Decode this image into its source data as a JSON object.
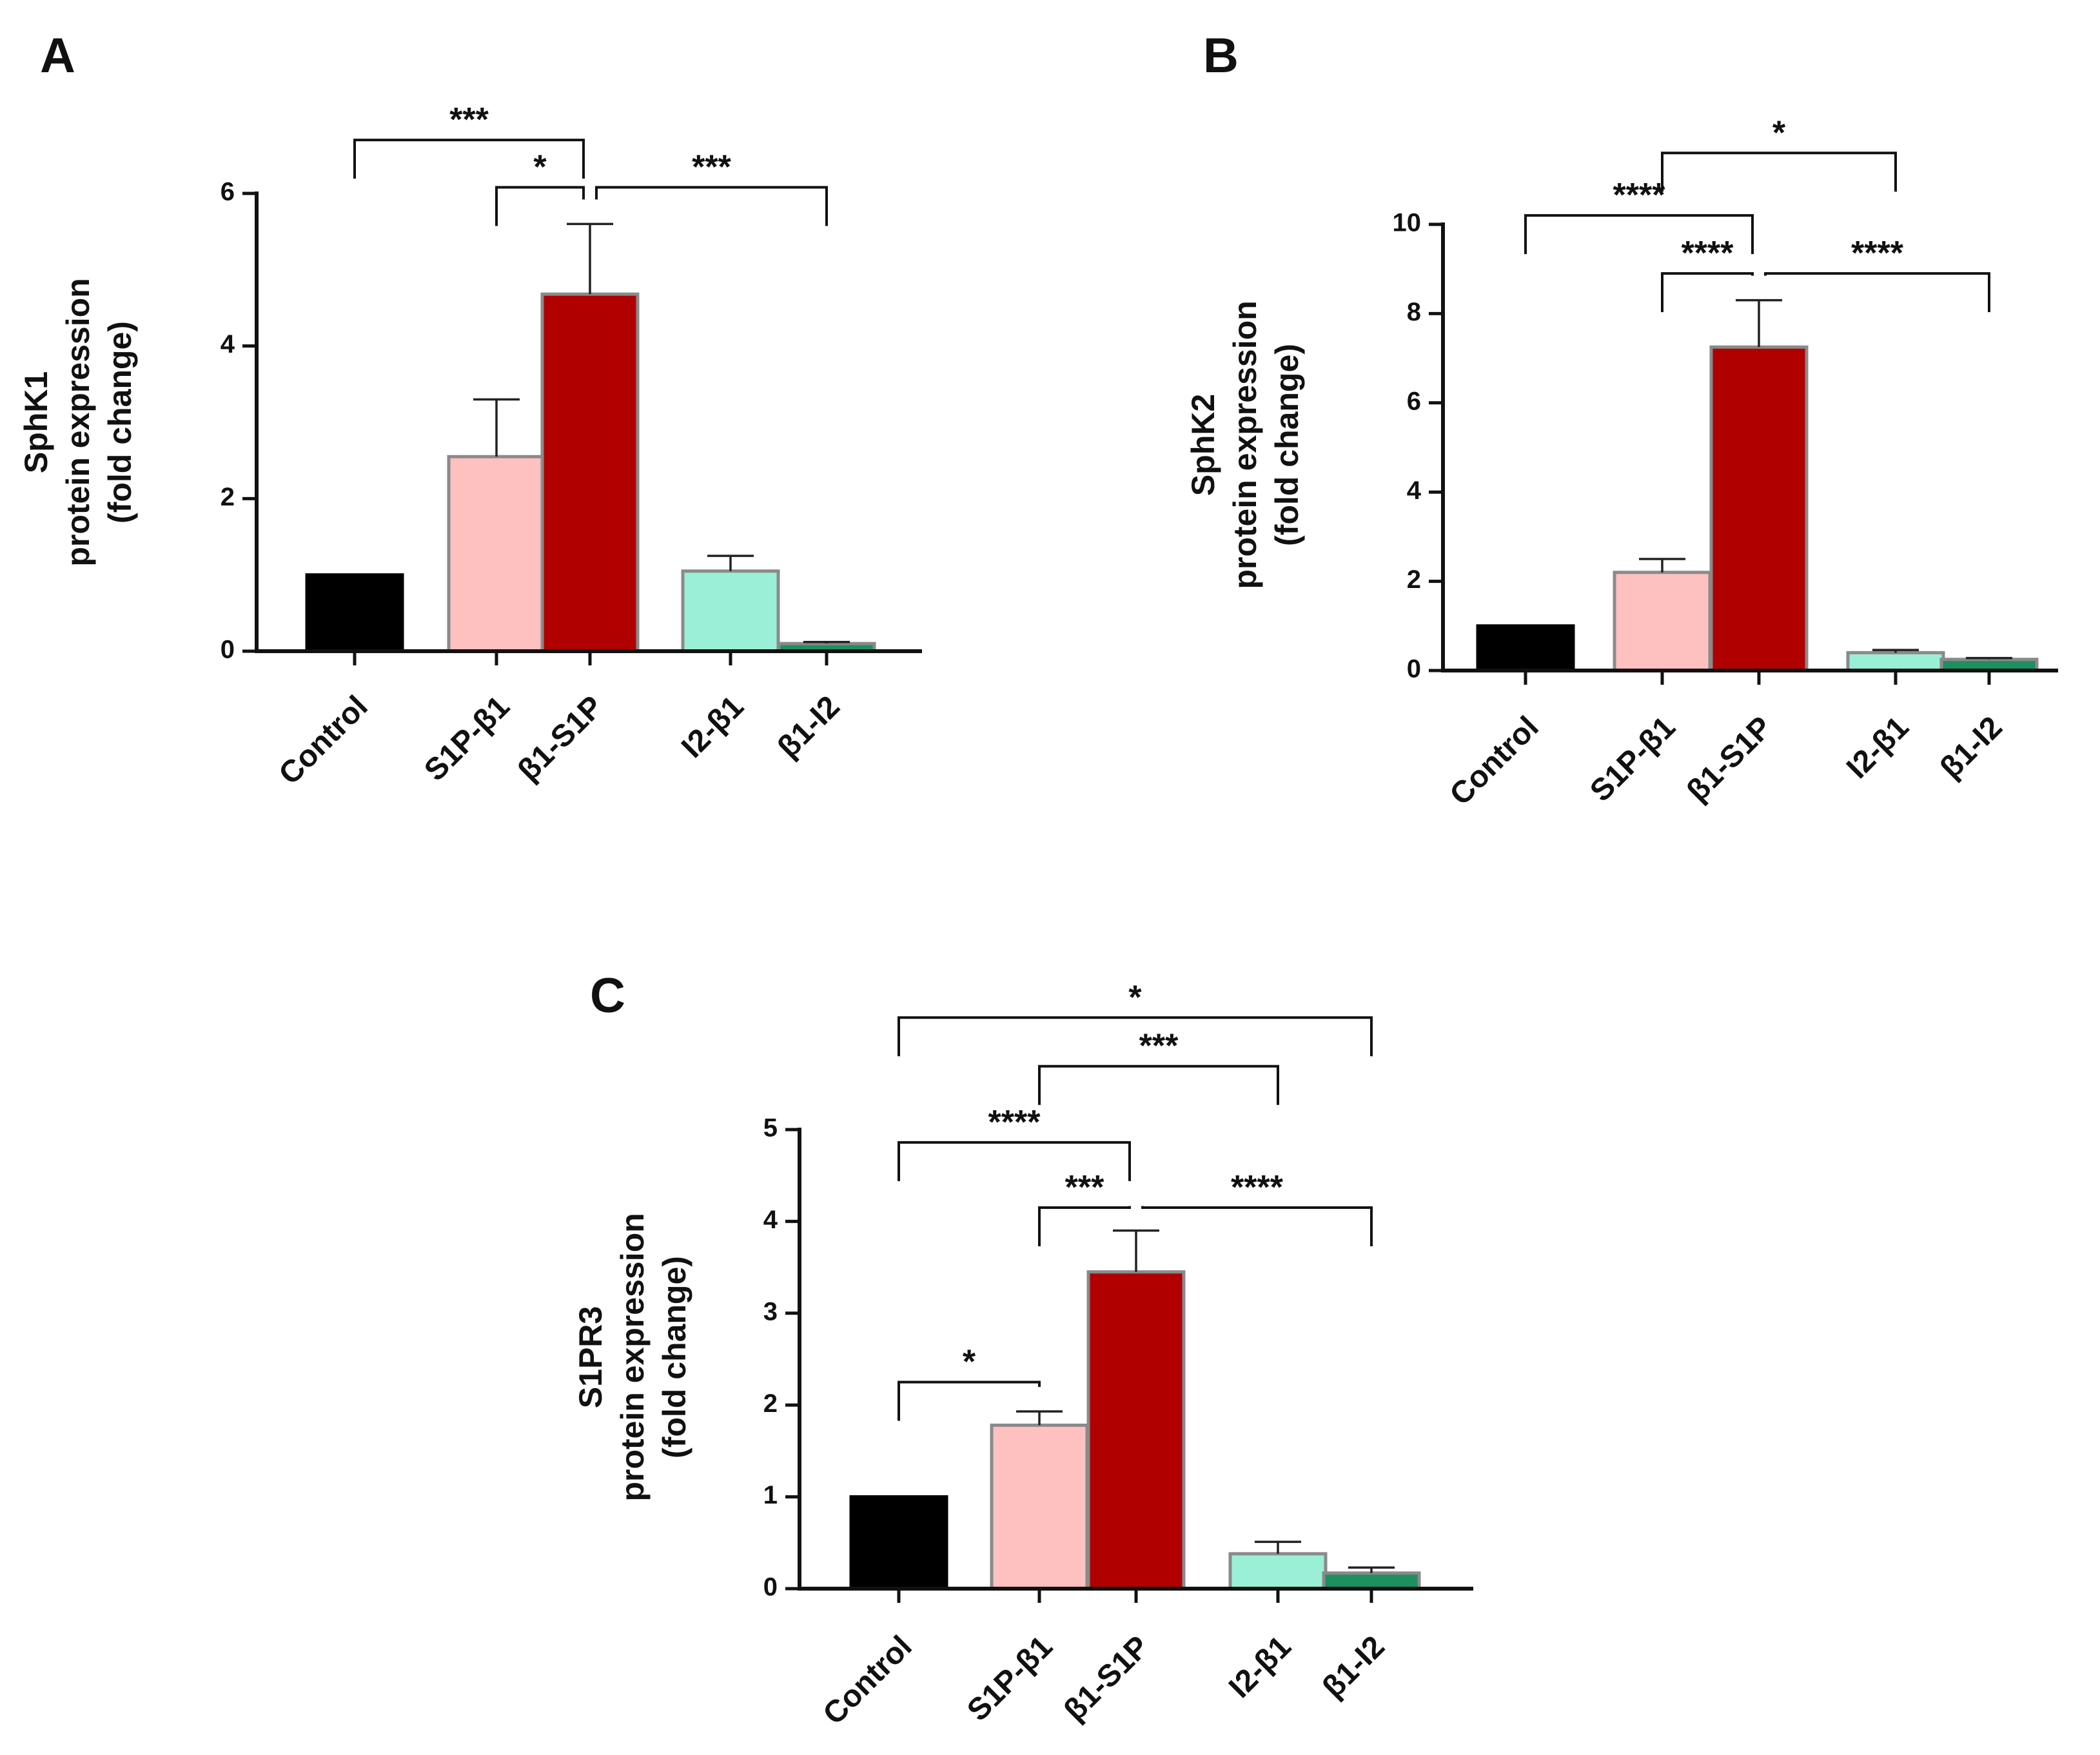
{
  "chart_data": [
    {
      "panel": "A",
      "type": "bar",
      "title": "",
      "xlabel": "",
      "ylabel": [
        "SphK1",
        "protein expression",
        "(fold change)"
      ],
      "ylim": [
        0,
        6
      ],
      "yticks": [
        "0",
        "2",
        "4",
        "6"
      ],
      "categories": [
        "Control",
        "S1P-β1",
        "β1-S1P",
        "I2-β1",
        "β1-I2"
      ],
      "values": [
        1.0,
        2.55,
        4.68,
        1.05,
        0.1
      ],
      "errors": [
        0,
        0.75,
        0.92,
        0.2,
        0.02
      ],
      "colors": [
        "#000000",
        "#ffc0c0",
        "#b00000",
        "#99f0d6",
        "#1d8f60"
      ],
      "significance": [
        {
          "from": "Control",
          "to": "β1-S1P",
          "label": "***",
          "level": 6.7
        },
        {
          "from": "S1P-β1",
          "to": "β1-S1P",
          "label": "*",
          "level": 6.08
        },
        {
          "from": "β1-S1P",
          "to": "β1-I2",
          "label": "***",
          "level": 6.08
        }
      ]
    },
    {
      "panel": "B",
      "type": "bar",
      "title": "",
      "xlabel": "",
      "ylabel": [
        "SphK2",
        "protein expression",
        "(fold change)"
      ],
      "ylim": [
        0,
        10
      ],
      "yticks": [
        "0",
        "2",
        "4",
        "6",
        "8",
        "10"
      ],
      "categories": [
        "Control",
        "S1P-β1",
        "β1-S1P",
        "I2-β1",
        "β1-I2"
      ],
      "values": [
        1.0,
        2.2,
        7.25,
        0.4,
        0.25
      ],
      "errors": [
        0,
        0.3,
        1.05,
        0.06,
        0.03
      ],
      "colors": [
        "#000000",
        "#ffc0c0",
        "#b00000",
        "#99f0d6",
        "#1d8f60"
      ],
      "significance": [
        {
          "from": "S1P-β1",
          "to": "I2-β1",
          "label": "*",
          "level": 11.6
        },
        {
          "from": "Control",
          "to": "β1-S1P",
          "label": "****",
          "level": 10.2
        },
        {
          "from": "S1P-β1",
          "to": "β1-S1P",
          "label": "****",
          "level": 8.9
        },
        {
          "from": "β1-S1P",
          "to": "β1-I2",
          "label": "****",
          "level": 8.9
        }
      ]
    },
    {
      "panel": "C",
      "type": "bar",
      "title": "",
      "xlabel": "",
      "ylabel": [
        "S1PR3",
        "protein expression",
        "(fold change)"
      ],
      "ylim": [
        0,
        5
      ],
      "yticks": [
        "0",
        "1",
        "2",
        "3",
        "4",
        "5"
      ],
      "categories": [
        "Control",
        "S1P-β1",
        "β1-S1P",
        "I2-β1",
        "β1-I2"
      ],
      "values": [
        1.0,
        1.78,
        3.45,
        0.38,
        0.17
      ],
      "errors": [
        0,
        0.15,
        0.45,
        0.13,
        0.06
      ],
      "colors": [
        "#000000",
        "#ffc0c0",
        "#b00000",
        "#99f0d6",
        "#1d8f60"
      ],
      "significance": [
        {
          "from": "Control",
          "to": "β1-I2",
          "label": "*",
          "level": 6.22
        },
        {
          "from": "S1P-β1",
          "to": "I2-β1",
          "label": "***",
          "level": 5.69
        },
        {
          "from": "Control",
          "to": "β1-S1P",
          "label": "****",
          "level": 4.86
        },
        {
          "from": "S1P-β1",
          "to": "β1-S1P",
          "label": "***",
          "level": 4.15
        },
        {
          "from": "β1-S1P",
          "to": "β1-I2",
          "label": "****",
          "level": 4.15
        },
        {
          "from": "Control",
          "to": "S1P-β1",
          "label": "*",
          "level": 2.25
        }
      ]
    }
  ]
}
